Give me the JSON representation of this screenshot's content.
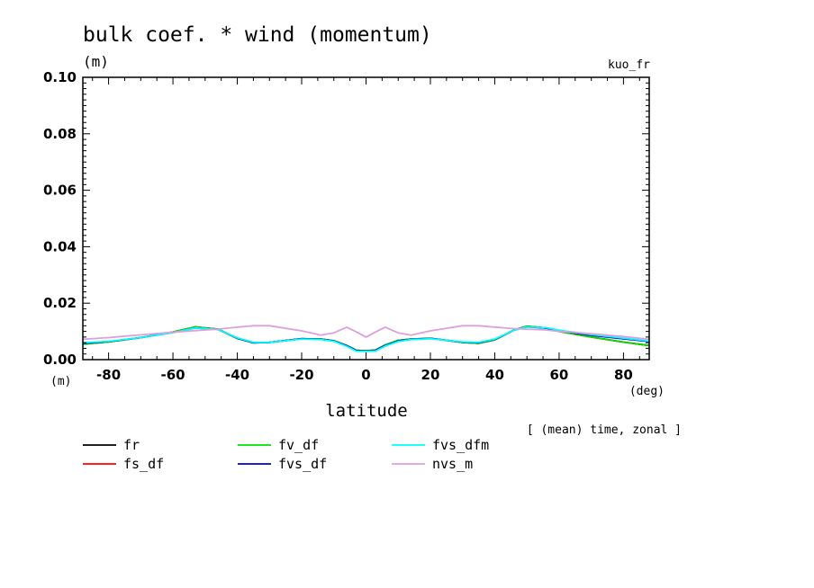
{
  "chart_data": {
    "type": "line",
    "title": "bulk coef. * wind (momentum)",
    "y_unit": "(m)",
    "x_unit_left": "(m)",
    "x_unit_right": "(deg)",
    "top_right_label": "kuo_fr",
    "xlabel": "latitude",
    "note": "[ (mean) time, zonal ]",
    "xlim": [
      -88,
      88
    ],
    "ylim": [
      0,
      0.1
    ],
    "x_ticks": [
      -80,
      -60,
      -40,
      -20,
      0,
      20,
      40,
      60,
      80
    ],
    "x_tick_labels": [
      "-80",
      "-60",
      "-40",
      "-20",
      "0",
      "20",
      "40",
      "60",
      "80"
    ],
    "y_ticks": [
      0,
      0.02,
      0.04,
      0.06,
      0.08,
      0.1
    ],
    "y_tick_labels": [
      "0.00",
      "0.02",
      "0.04",
      "0.06",
      "0.08",
      "0.10"
    ],
    "x": [
      -88,
      -80,
      -70,
      -60,
      -53,
      -46,
      -40,
      -35,
      -30,
      -20,
      -14,
      -10,
      -6,
      -3,
      0,
      3,
      6,
      10,
      14,
      20,
      30,
      35,
      40,
      46,
      50,
      56,
      60,
      70,
      80,
      88
    ],
    "series": [
      {
        "name": "fr",
        "color": "#000000",
        "values": [
          0.0055,
          0.0063,
          0.0078,
          0.0098,
          0.0116,
          0.0108,
          0.0075,
          0.006,
          0.0061,
          0.0074,
          0.0073,
          0.0067,
          0.005,
          0.0033,
          0.0031,
          0.0034,
          0.0052,
          0.0068,
          0.0073,
          0.0075,
          0.0061,
          0.0058,
          0.007,
          0.0105,
          0.0118,
          0.0112,
          0.01,
          0.008,
          0.0062,
          0.005
        ]
      },
      {
        "name": "fs_df",
        "color": "#ff0000",
        "values": [
          0.0055,
          0.0063,
          0.0078,
          0.0098,
          0.0116,
          0.0108,
          0.0075,
          0.006,
          0.0061,
          0.0074,
          0.0073,
          0.0067,
          0.005,
          0.0033,
          0.0031,
          0.0034,
          0.0052,
          0.0068,
          0.0073,
          0.0075,
          0.0061,
          0.0058,
          0.007,
          0.0105,
          0.0118,
          0.0112,
          0.01,
          0.008,
          0.0062,
          0.005
        ]
      },
      {
        "name": "fv_df",
        "color": "#00e000",
        "values": [
          0.0055,
          0.0063,
          0.0078,
          0.0098,
          0.0116,
          0.0108,
          0.0075,
          0.006,
          0.0061,
          0.0074,
          0.0073,
          0.0067,
          0.005,
          0.0033,
          0.0031,
          0.0034,
          0.0052,
          0.0068,
          0.0073,
          0.0075,
          0.0061,
          0.0058,
          0.007,
          0.0105,
          0.0118,
          0.0112,
          0.01,
          0.008,
          0.0062,
          0.005
        ]
      },
      {
        "name": "fvs_df",
        "color": "#0000c0",
        "values": [
          0.0058,
          0.0064,
          0.0078,
          0.0096,
          0.0112,
          0.0107,
          0.0076,
          0.006,
          0.0061,
          0.0074,
          0.0072,
          0.0066,
          0.0049,
          0.0032,
          0.003,
          0.0033,
          0.005,
          0.0066,
          0.0072,
          0.0075,
          0.0062,
          0.006,
          0.0072,
          0.0104,
          0.0116,
          0.0112,
          0.0102,
          0.0086,
          0.0074,
          0.0064
        ]
      },
      {
        "name": "fvs_dfm",
        "color": "#00ffff",
        "values": [
          0.006,
          0.0065,
          0.0078,
          0.0096,
          0.0112,
          0.0107,
          0.0077,
          0.0061,
          0.0061,
          0.0073,
          0.0071,
          0.0065,
          0.0047,
          0.003,
          0.0029,
          0.0031,
          0.0048,
          0.0064,
          0.0071,
          0.0074,
          0.0063,
          0.0061,
          0.0073,
          0.0104,
          0.0116,
          0.0113,
          0.0104,
          0.0089,
          0.0076,
          0.0066
        ]
      },
      {
        "name": "nvs_m",
        "color": "#dca0dc",
        "values": [
          0.0072,
          0.0078,
          0.0088,
          0.0097,
          0.0103,
          0.0108,
          0.0115,
          0.012,
          0.012,
          0.0102,
          0.0087,
          0.0095,
          0.0115,
          0.0098,
          0.008,
          0.0098,
          0.0115,
          0.0095,
          0.0087,
          0.0102,
          0.012,
          0.012,
          0.0115,
          0.011,
          0.0108,
          0.0105,
          0.01,
          0.0092,
          0.0082,
          0.0072
        ]
      }
    ],
    "legend": [
      {
        "name": "fr",
        "color": "#000000"
      },
      {
        "name": "fs_df",
        "color": "#ff0000"
      },
      {
        "name": "fv_df",
        "color": "#00e000"
      },
      {
        "name": "fvs_df",
        "color": "#0000c0"
      },
      {
        "name": "fvs_dfm",
        "color": "#00ffff"
      },
      {
        "name": "nvs_m",
        "color": "#dca0dc"
      }
    ]
  }
}
